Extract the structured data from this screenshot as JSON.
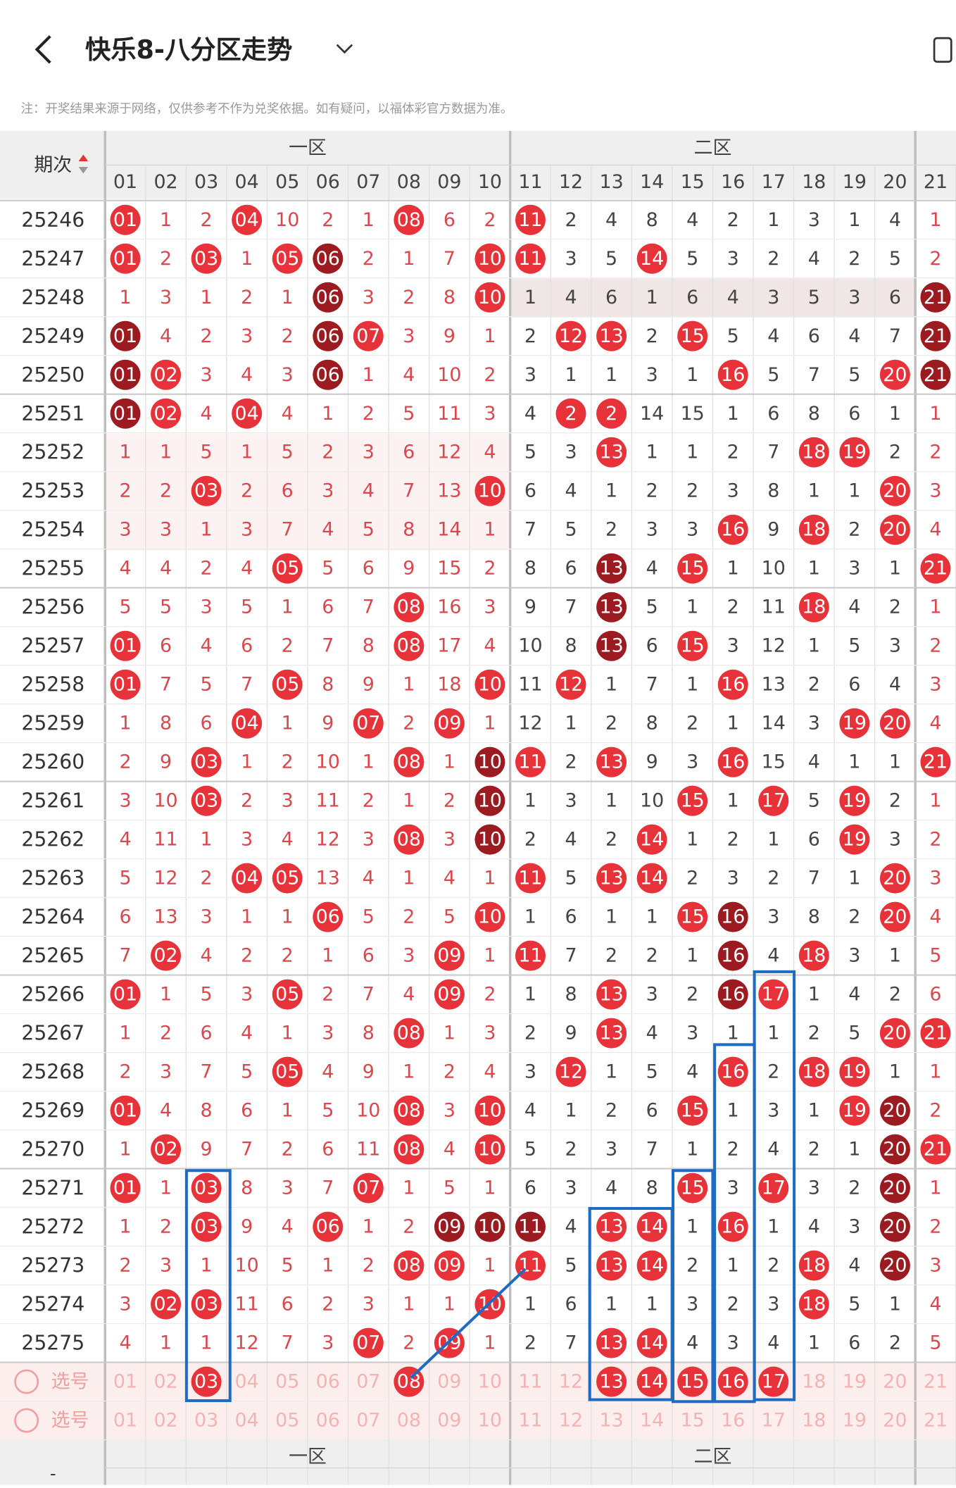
{
  "header": {
    "title": "快乐8-八分区走势",
    "note": "注：开奖结果来源于网络，仅供参考不作为兑奖依据。如有疑问，以福体彩官方数据为准。"
  },
  "table": {
    "corner": "期次",
    "zones": [
      "一区",
      "二区"
    ],
    "columns": [
      "01",
      "02",
      "03",
      "04",
      "05",
      "06",
      "07",
      "08",
      "09",
      "10",
      "11",
      "12",
      "13",
      "14",
      "15",
      "16",
      "17",
      "18",
      "19",
      "20",
      "21"
    ],
    "rows": [
      {
        "period": "25246",
        "cells": [
          "01",
          "1",
          "2",
          "04",
          "10",
          "2",
          "1",
          "08",
          "6",
          "2",
          "11",
          "2",
          "4",
          "8",
          "4",
          "2",
          "1",
          "3",
          "1",
          "4",
          "1"
        ],
        "hits": "r..r...r..r.........."
      },
      {
        "period": "25247",
        "cells": [
          "01",
          "2",
          "03",
          "1",
          "05",
          "06",
          "2",
          "1",
          "7",
          "10",
          "11",
          "3",
          "5",
          "14",
          "5",
          "3",
          "2",
          "4",
          "2",
          "5",
          "2"
        ],
        "hits": "r.r.rd...rr..r......."
      },
      {
        "period": "25248",
        "cells": [
          "1",
          "3",
          "1",
          "2",
          "1",
          "06",
          "3",
          "2",
          "8",
          "10",
          "1",
          "4",
          "6",
          "1",
          "6",
          "4",
          "3",
          "5",
          "3",
          "6",
          "21"
        ],
        "hits": ".....d...r..........d"
      },
      {
        "period": "25249",
        "cells": [
          "01",
          "4",
          "2",
          "3",
          "2",
          "06",
          "07",
          "3",
          "9",
          "1",
          "2",
          "12",
          "13",
          "2",
          "15",
          "5",
          "4",
          "6",
          "4",
          "7",
          "21"
        ],
        "hits": "d....dr....rr.r.....d"
      },
      {
        "period": "25250",
        "cells": [
          "01",
          "02",
          "3",
          "4",
          "3",
          "06",
          "1",
          "4",
          "10",
          "2",
          "3",
          "1",
          "1",
          "3",
          "1",
          "16",
          "5",
          "7",
          "5",
          "20",
          "21"
        ],
        "hits": "dr...d.........r...rd"
      },
      {
        "period": "25251",
        "cells": [
          "01",
          "02",
          "4",
          "04",
          "4",
          "1",
          "2",
          "5",
          "11",
          "3",
          "4",
          "2",
          "2",
          "14",
          "15",
          "1",
          "6",
          "8",
          "6",
          "1",
          "1"
        ],
        "hits": "dr.r.......rr........"
      },
      {
        "period": "25252",
        "cells": [
          "1",
          "1",
          "5",
          "1",
          "5",
          "2",
          "3",
          "6",
          "12",
          "4",
          "5",
          "3",
          "13",
          "1",
          "1",
          "2",
          "7",
          "18",
          "19",
          "2",
          "2"
        ],
        "hits": "............r....rr.."
      },
      {
        "period": "25253",
        "cells": [
          "2",
          "2",
          "03",
          "2",
          "6",
          "3",
          "4",
          "7",
          "13",
          "10",
          "6",
          "4",
          "1",
          "2",
          "2",
          "3",
          "8",
          "1",
          "1",
          "20",
          "3"
        ],
        "hits": "..r......r.........r."
      },
      {
        "period": "25254",
        "cells": [
          "3",
          "3",
          "1",
          "3",
          "7",
          "4",
          "5",
          "8",
          "14",
          "1",
          "7",
          "5",
          "2",
          "3",
          "3",
          "16",
          "9",
          "18",
          "2",
          "20",
          "4"
        ],
        "hits": "...............r.r.r."
      },
      {
        "period": "25255",
        "cells": [
          "4",
          "4",
          "2",
          "4",
          "05",
          "5",
          "6",
          "9",
          "15",
          "2",
          "8",
          "6",
          "13",
          "4",
          "15",
          "1",
          "10",
          "1",
          "3",
          "1",
          "21"
        ],
        "hits": "....r.......d.r.....r"
      },
      {
        "period": "25256",
        "cells": [
          "5",
          "5",
          "3",
          "5",
          "1",
          "6",
          "7",
          "08",
          "16",
          "3",
          "9",
          "7",
          "13",
          "5",
          "1",
          "2",
          "11",
          "18",
          "4",
          "2",
          "1"
        ],
        "hits": ".......r....d....r..."
      },
      {
        "period": "25257",
        "cells": [
          "01",
          "6",
          "4",
          "6",
          "2",
          "7",
          "8",
          "08",
          "17",
          "4",
          "10",
          "8",
          "13",
          "6",
          "15",
          "3",
          "12",
          "1",
          "5",
          "3",
          "2"
        ],
        "hits": "r......r....d.r......"
      },
      {
        "period": "25258",
        "cells": [
          "01",
          "7",
          "5",
          "7",
          "05",
          "8",
          "9",
          "1",
          "18",
          "10",
          "11",
          "12",
          "1",
          "7",
          "1",
          "16",
          "13",
          "2",
          "6",
          "4",
          "3"
        ],
        "hits": "r...r....r.r...r....."
      },
      {
        "period": "25259",
        "cells": [
          "1",
          "8",
          "6",
          "04",
          "1",
          "9",
          "07",
          "2",
          "09",
          "1",
          "12",
          "1",
          "2",
          "8",
          "2",
          "1",
          "14",
          "3",
          "19",
          "20",
          "4"
        ],
        "hits": "...r..r.r.........rr."
      },
      {
        "period": "25260",
        "cells": [
          "2",
          "9",
          "03",
          "1",
          "2",
          "10",
          "1",
          "08",
          "1",
          "10",
          "11",
          "2",
          "13",
          "9",
          "3",
          "16",
          "15",
          "4",
          "1",
          "1",
          "21"
        ],
        "hits": "..r....r.dr.r..r....r"
      },
      {
        "period": "25261",
        "cells": [
          "3",
          "10",
          "03",
          "2",
          "3",
          "11",
          "2",
          "1",
          "2",
          "10",
          "1",
          "3",
          "1",
          "10",
          "15",
          "1",
          "17",
          "5",
          "19",
          "2",
          "1"
        ],
        "hits": "..r......d....r.r.r.."
      },
      {
        "period": "25262",
        "cells": [
          "4",
          "11",
          "1",
          "3",
          "4",
          "12",
          "3",
          "08",
          "3",
          "10",
          "2",
          "4",
          "2",
          "14",
          "1",
          "2",
          "1",
          "6",
          "19",
          "3",
          "2"
        ],
        "hits": ".......r.d...r....r.."
      },
      {
        "period": "25263",
        "cells": [
          "5",
          "12",
          "2",
          "04",
          "05",
          "13",
          "4",
          "1",
          "4",
          "1",
          "11",
          "5",
          "13",
          "14",
          "2",
          "3",
          "2",
          "7",
          "1",
          "20",
          "3"
        ],
        "hits": "...rr.....r.rr.....r."
      },
      {
        "period": "25264",
        "cells": [
          "6",
          "13",
          "3",
          "1",
          "1",
          "06",
          "5",
          "2",
          "5",
          "10",
          "1",
          "6",
          "1",
          "1",
          "15",
          "16",
          "3",
          "8",
          "2",
          "20",
          "4"
        ],
        "hits": ".....r...r....rd...r."
      },
      {
        "period": "25265",
        "cells": [
          "7",
          "02",
          "4",
          "2",
          "2",
          "1",
          "6",
          "3",
          "09",
          "1",
          "11",
          "7",
          "2",
          "2",
          "1",
          "16",
          "4",
          "18",
          "3",
          "1",
          "5"
        ],
        "hits": ".r......r.r....d.r..."
      },
      {
        "period": "25266",
        "cells": [
          "01",
          "1",
          "5",
          "3",
          "05",
          "2",
          "7",
          "4",
          "09",
          "2",
          "1",
          "8",
          "13",
          "3",
          "2",
          "16",
          "17",
          "1",
          "4",
          "2",
          "6"
        ],
        "hits": "r...r...r...r..dr...."
      },
      {
        "period": "25267",
        "cells": [
          "1",
          "2",
          "6",
          "4",
          "1",
          "3",
          "8",
          "08",
          "1",
          "3",
          "2",
          "9",
          "13",
          "4",
          "3",
          "1",
          "1",
          "2",
          "5",
          "20",
          "21"
        ],
        "hits": ".......r....r......rr"
      },
      {
        "period": "25268",
        "cells": [
          "2",
          "3",
          "7",
          "5",
          "05",
          "4",
          "9",
          "1",
          "2",
          "4",
          "3",
          "12",
          "1",
          "5",
          "4",
          "16",
          "2",
          "18",
          "19",
          "1",
          "1"
        ],
        "hits": "....r......r...r.rr.."
      },
      {
        "period": "25269",
        "cells": [
          "01",
          "4",
          "8",
          "6",
          "1",
          "5",
          "10",
          "08",
          "3",
          "10",
          "4",
          "1",
          "2",
          "6",
          "15",
          "1",
          "3",
          "1",
          "19",
          "20",
          "2"
        ],
        "hits": "r......r.r....r...rd."
      },
      {
        "period": "25270",
        "cells": [
          "1",
          "02",
          "9",
          "7",
          "2",
          "6",
          "11",
          "08",
          "4",
          "10",
          "5",
          "2",
          "3",
          "7",
          "1",
          "2",
          "4",
          "2",
          "1",
          "20",
          "21"
        ],
        "hits": ".r.....r.r.........dr"
      },
      {
        "period": "25271",
        "cells": [
          "01",
          "1",
          "03",
          "8",
          "3",
          "7",
          "07",
          "1",
          "5",
          "1",
          "6",
          "3",
          "4",
          "8",
          "15",
          "3",
          "17",
          "3",
          "2",
          "20",
          "1"
        ],
        "hits": "r.r...r.......r.r..d."
      },
      {
        "period": "25272",
        "cells": [
          "1",
          "2",
          "03",
          "9",
          "4",
          "06",
          "1",
          "2",
          "09",
          "10",
          "11",
          "4",
          "13",
          "14",
          "1",
          "16",
          "1",
          "4",
          "3",
          "20",
          "2"
        ],
        "hits": "..r..r..ddd.rr.r...d."
      },
      {
        "period": "25273",
        "cells": [
          "2",
          "3",
          "1",
          "10",
          "5",
          "1",
          "2",
          "08",
          "09",
          "1",
          "11",
          "5",
          "13",
          "14",
          "2",
          "1",
          "2",
          "18",
          "4",
          "20",
          "3"
        ],
        "hits": ".......rr.r.rr...r.d."
      },
      {
        "period": "25274",
        "cells": [
          "3",
          "02",
          "03",
          "11",
          "6",
          "2",
          "3",
          "1",
          "1",
          "10",
          "1",
          "6",
          "1",
          "1",
          "3",
          "2",
          "3",
          "18",
          "5",
          "1",
          "4"
        ],
        "hits": ".rr......r.......r..."
      },
      {
        "period": "25275",
        "cells": [
          "4",
          "1",
          "1",
          "12",
          "7",
          "3",
          "07",
          "2",
          "09",
          "1",
          "2",
          "7",
          "13",
          "14",
          "4",
          "3",
          "4",
          "1",
          "6",
          "2",
          "5"
        ],
        "hits": "......r.r...rr......."
      }
    ]
  },
  "select": {
    "rows": [
      {
        "label": "选号",
        "cells": [
          "01",
          "02",
          "03",
          "04",
          "05",
          "06",
          "07",
          "08",
          "09",
          "10",
          "11",
          "12",
          "13",
          "14",
          "15",
          "16",
          "17",
          "18",
          "19",
          "20",
          "21"
        ],
        "picked": "..r....r....rrrrr...."
      },
      {
        "label": "选号",
        "cells": [
          "01",
          "02",
          "03",
          "04",
          "05",
          "06",
          "07",
          "08",
          "09",
          "10",
          "11",
          "12",
          "13",
          "14",
          "15",
          "16",
          "17",
          "18",
          "19",
          "20",
          "21"
        ],
        "picked": "....................."
      }
    ]
  },
  "footer": {
    "corner": "-"
  }
}
